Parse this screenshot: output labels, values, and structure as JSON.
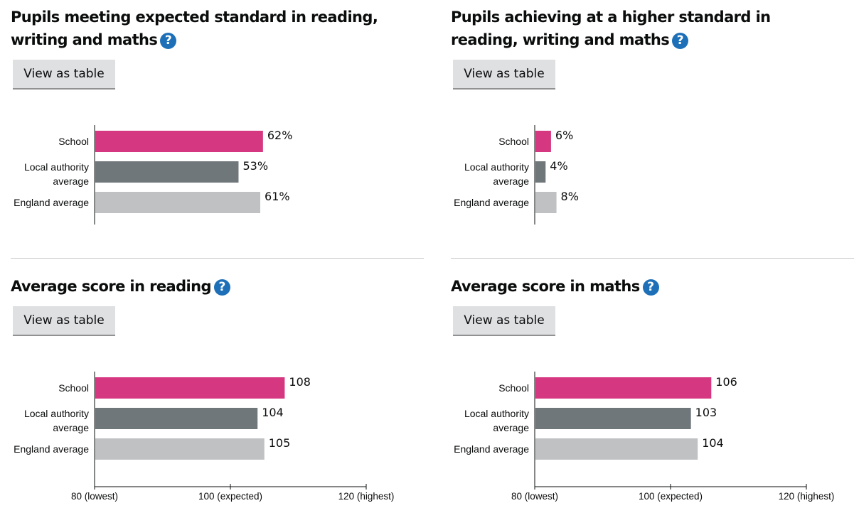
{
  "colors": {
    "school": "#d53880",
    "local_authority": "#6f777b",
    "england": "#bfc1c3",
    "help_icon": "#1d70b8"
  },
  "help_icon": "question-mark-icon",
  "button_label": "View as table",
  "chart_data": [
    {
      "type": "bar",
      "title": "Pupils meeting expected standard in reading, writing and maths",
      "categories": [
        "School",
        "Local authority average",
        "England average"
      ],
      "values": [
        62,
        53,
        61
      ],
      "value_labels": [
        "62%",
        "53%",
        "61%"
      ],
      "xlim": [
        0,
        100
      ],
      "orientation": "horizontal"
    },
    {
      "type": "bar",
      "title": "Pupils achieving at a higher standard in reading, writing and maths",
      "categories": [
        "School",
        "Local authority average",
        "England average"
      ],
      "values": [
        6,
        4,
        8
      ],
      "value_labels": [
        "6%",
        "4%",
        "8%"
      ],
      "xlim": [
        0,
        100
      ],
      "orientation": "horizontal"
    },
    {
      "type": "bar",
      "title": "Average score in reading",
      "categories": [
        "School",
        "Local authority average",
        "England average"
      ],
      "values": [
        108,
        104,
        105
      ],
      "value_labels": [
        "108",
        "104",
        "105"
      ],
      "xlim": [
        80,
        120
      ],
      "xticks": [
        80,
        100,
        120
      ],
      "xtick_labels": [
        "80 (lowest)",
        "100 (expected)",
        "120 (highest)"
      ],
      "orientation": "horizontal"
    },
    {
      "type": "bar",
      "title": "Average score in maths",
      "categories": [
        "School",
        "Local authority average",
        "England average"
      ],
      "values": [
        106,
        103,
        104
      ],
      "value_labels": [
        "106",
        "103",
        "104"
      ],
      "xlim": [
        80,
        120
      ],
      "xticks": [
        80,
        100,
        120
      ],
      "xtick_labels": [
        "80 (lowest)",
        "100 (expected)",
        "120 (highest)"
      ],
      "orientation": "horizontal"
    }
  ]
}
